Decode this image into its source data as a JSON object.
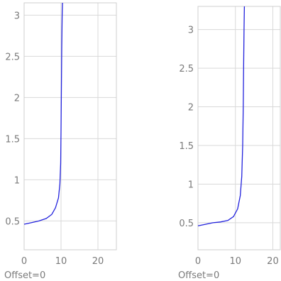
{
  "chart_data": [
    {
      "type": "line",
      "caption": "Offset=0",
      "xlim": [
        0,
        25
      ],
      "ylim": [
        0.15,
        3.15
      ],
      "xticks": [
        "0",
        "10",
        "20"
      ],
      "yticks": [
        "0.5",
        "1",
        "1.5",
        "2",
        "2.5",
        "3"
      ],
      "grid": true,
      "series": [
        {
          "color": "#2222dd",
          "x": [
            0,
            2,
            4,
            6,
            7.5,
            8.5,
            9.3,
            9.7,
            9.9,
            10.0,
            10.1,
            10.2,
            10.3,
            10.4
          ],
          "y": [
            0.46,
            0.48,
            0.5,
            0.53,
            0.58,
            0.66,
            0.78,
            0.95,
            1.2,
            1.6,
            2.1,
            2.6,
            3.0,
            3.15
          ]
        }
      ]
    },
    {
      "type": "line",
      "caption": "Offset=0",
      "xlim": [
        0,
        22
      ],
      "ylim": [
        0.15,
        3.3
      ],
      "xticks": [
        "0",
        "10",
        "20"
      ],
      "yticks": [
        "0.5",
        "1",
        "1.5",
        "2",
        "2.5",
        "3"
      ],
      "grid": true,
      "series": [
        {
          "color": "#2222dd",
          "x": [
            0,
            2,
            4,
            6,
            8,
            9.5,
            10.6,
            11.3,
            11.7,
            11.95,
            12.1,
            12.2,
            12.3,
            12.4
          ],
          "y": [
            0.46,
            0.48,
            0.5,
            0.51,
            0.53,
            0.58,
            0.68,
            0.85,
            1.1,
            1.5,
            2.0,
            2.5,
            3.0,
            3.3
          ]
        }
      ]
    }
  ]
}
